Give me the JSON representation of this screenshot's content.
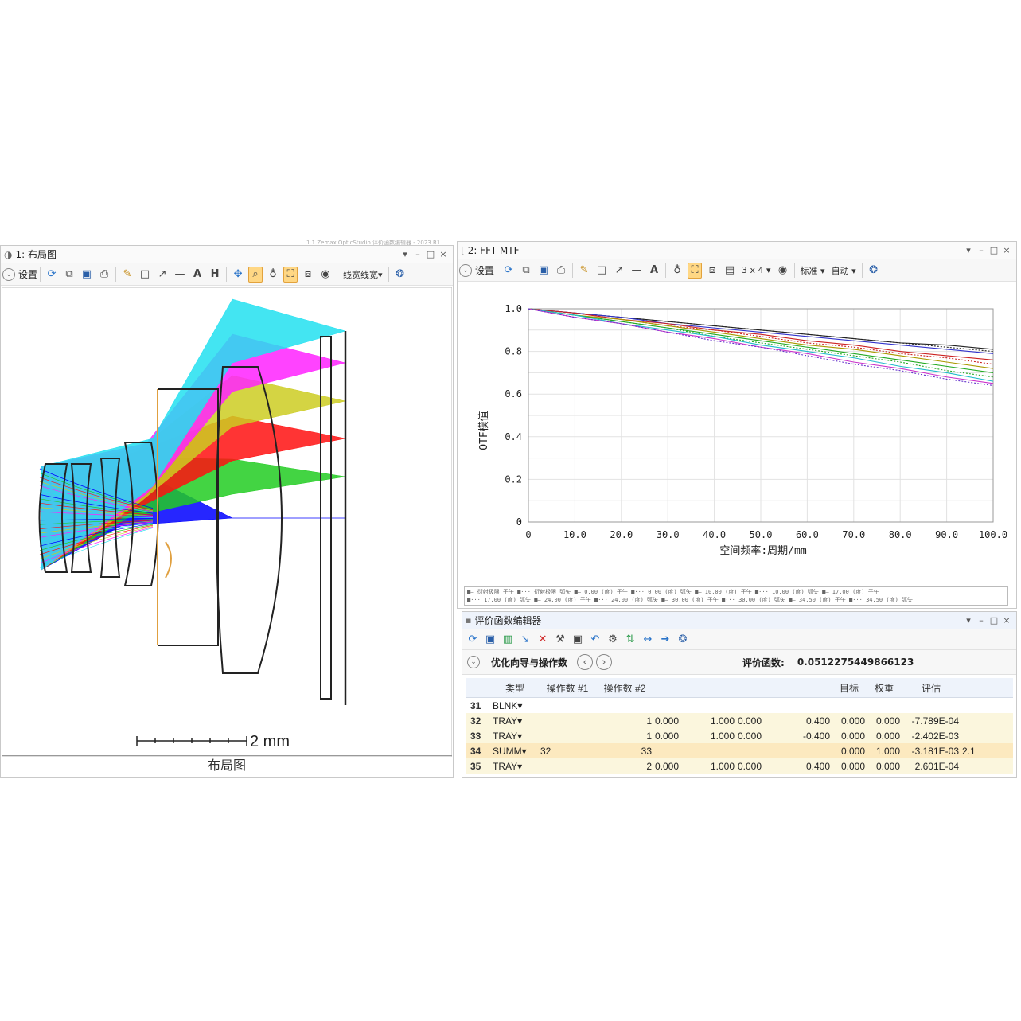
{
  "header_text": "1.1 Zemax OpticStudio 评价函数编辑器 - 2023 R1",
  "layout_window": {
    "title": "1: 布局图",
    "window_controls": [
      "▾",
      "–",
      "□",
      "×"
    ],
    "toolbar": {
      "settings_label": "设置",
      "line_thickness_label": "线宽",
      "line_thickness_full": "线宽线宽",
      "dropdown": "线宽线宽▾"
    },
    "scale_label": "2 mm",
    "caption": "布局图",
    "ray_colors": [
      "#0000ff",
      "#22cc22",
      "#ff1010",
      "#cccc22",
      "#ff22ff",
      "#22e0f0"
    ]
  },
  "mtf_window": {
    "title": "2: FFT MTF",
    "window_controls": [
      "▾",
      "–",
      "□",
      "×"
    ],
    "toolbar": {
      "settings_label": "设置",
      "layout_dropdown": "3 x 4 ▾",
      "standard_dropdown": "标准 ▾",
      "auto_dropdown": "自动 ▾"
    },
    "legend_row1": "■— 衍射极限 子午   ■··· 衍射极限 弧矢   ■— 0.00 (度) 子午   ■··· 0.00 (度) 弧矢   ■— 10.00 (度) 子午   ■··· 10.00 (度) 弧矢   ■— 17.00 (度) 子午",
    "legend_row2": "■··· 17.00 (度) 弧矢   ■— 24.00 (度) 子午   ■··· 24.00 (度) 弧矢   ■— 30.00 (度) 子午   ■··· 30.00 (度) 弧矢   ■— 34.50 (度) 子午   ■··· 34.50 (度) 弧矢"
  },
  "chart_data": {
    "type": "line",
    "title": "",
    "xlabel": "空间频率:周期/mm",
    "ylabel": "OTF模值",
    "xlim": [
      0,
      100
    ],
    "ylim": [
      0,
      1.0
    ],
    "x_ticks": [
      "0",
      "10.0",
      "20.0",
      "30.0",
      "40.0",
      "50.0",
      "60.0",
      "70.0",
      "80.0",
      "90.0",
      "100.0"
    ],
    "y_ticks": [
      "0",
      "0.2",
      "0.4",
      "0.6",
      "0.8",
      "1.0"
    ],
    "grid": true,
    "x": [
      0,
      10,
      20,
      30,
      40,
      50,
      60,
      70,
      80,
      90,
      100
    ],
    "series": [
      {
        "color": "#222222",
        "style": "solid",
        "values": [
          1.0,
          0.98,
          0.96,
          0.94,
          0.92,
          0.9,
          0.88,
          0.86,
          0.84,
          0.83,
          0.81
        ]
      },
      {
        "color": "#222222",
        "style": "dotted",
        "values": [
          1.0,
          0.98,
          0.96,
          0.94,
          0.92,
          0.9,
          0.88,
          0.86,
          0.84,
          0.82,
          0.8
        ]
      },
      {
        "color": "#3333cc",
        "style": "solid",
        "values": [
          1.0,
          0.98,
          0.96,
          0.93,
          0.91,
          0.89,
          0.87,
          0.85,
          0.83,
          0.81,
          0.79
        ]
      },
      {
        "color": "#cc2222",
        "style": "solid",
        "values": [
          1.0,
          0.98,
          0.95,
          0.93,
          0.9,
          0.88,
          0.85,
          0.83,
          0.8,
          0.78,
          0.76
        ]
      },
      {
        "color": "#cc2222",
        "style": "dotted",
        "values": [
          1.0,
          0.98,
          0.95,
          0.92,
          0.9,
          0.87,
          0.84,
          0.82,
          0.79,
          0.77,
          0.74
        ]
      },
      {
        "color": "#aa9900",
        "style": "solid",
        "values": [
          1.0,
          0.97,
          0.95,
          0.92,
          0.89,
          0.86,
          0.83,
          0.81,
          0.78,
          0.75,
          0.72
        ]
      },
      {
        "color": "#22aa22",
        "style": "solid",
        "values": [
          1.0,
          0.97,
          0.94,
          0.91,
          0.88,
          0.85,
          0.82,
          0.79,
          0.76,
          0.73,
          0.7
        ]
      },
      {
        "color": "#22aa22",
        "style": "dotted",
        "values": [
          1.0,
          0.97,
          0.94,
          0.91,
          0.87,
          0.84,
          0.81,
          0.78,
          0.75,
          0.71,
          0.68
        ]
      },
      {
        "color": "#22bbcc",
        "style": "solid",
        "values": [
          1.0,
          0.97,
          0.93,
          0.9,
          0.87,
          0.83,
          0.8,
          0.77,
          0.73,
          0.7,
          0.66
        ]
      },
      {
        "color": "#cc33cc",
        "style": "solid",
        "values": [
          1.0,
          0.96,
          0.93,
          0.89,
          0.86,
          0.82,
          0.79,
          0.75,
          0.72,
          0.68,
          0.65
        ]
      },
      {
        "color": "#6633cc",
        "style": "dotted",
        "values": [
          1.0,
          0.96,
          0.93,
          0.89,
          0.85,
          0.82,
          0.78,
          0.74,
          0.71,
          0.67,
          0.64
        ]
      }
    ]
  },
  "merit_editor": {
    "title": "评价函数编辑器",
    "window_controls": [
      "▾",
      "–",
      "□",
      "×"
    ],
    "wizard_label": "优化向导与操作数",
    "nav_prev": "‹",
    "nav_next": "›",
    "merit_label": "评价函数:",
    "merit_value": "0.0512275449866123",
    "columns": [
      "类型",
      "操作数 #1",
      "操作数 #2",
      "",
      "",
      "",
      "",
      "目标",
      "权重",
      "评估"
    ],
    "rows": [
      {
        "n": "31",
        "type": "BLNK",
        "op1": "",
        "op2": "",
        "c1": "",
        "c2": "",
        "c3": "",
        "c4": "",
        "target": "",
        "weight": "",
        "value": "",
        "extra": ""
      },
      {
        "n": "32",
        "type": "TRAY",
        "op1": "",
        "op2": "1",
        "c1": "0.000",
        "c2": "1.000",
        "c3": "0.000",
        "c4": "0.400",
        "target": "0.000",
        "weight": "0.000",
        "value": "-7.789E-04",
        "extra": ""
      },
      {
        "n": "33",
        "type": "TRAY",
        "op1": "",
        "op2": "1",
        "c1": "0.000",
        "c2": "1.000",
        "c3": "0.000",
        "c4": "-0.400",
        "target": "0.000",
        "weight": "0.000",
        "value": "-2.402E-03",
        "extra": ""
      },
      {
        "n": "34",
        "type": "SUMM",
        "op1": "32",
        "op2": "33",
        "c1": "",
        "c2": "",
        "c3": "",
        "c4": "",
        "target": "0.000",
        "weight": "1.000",
        "value": "-3.181E-03",
        "extra": "2.1"
      },
      {
        "n": "35",
        "type": "TRAY",
        "op1": "",
        "op2": "2",
        "c1": "0.000",
        "c2": "1.000",
        "c3": "0.000",
        "c4": "0.400",
        "target": "0.000",
        "weight": "0.000",
        "value": "2.601E-04",
        "extra": ""
      }
    ]
  }
}
